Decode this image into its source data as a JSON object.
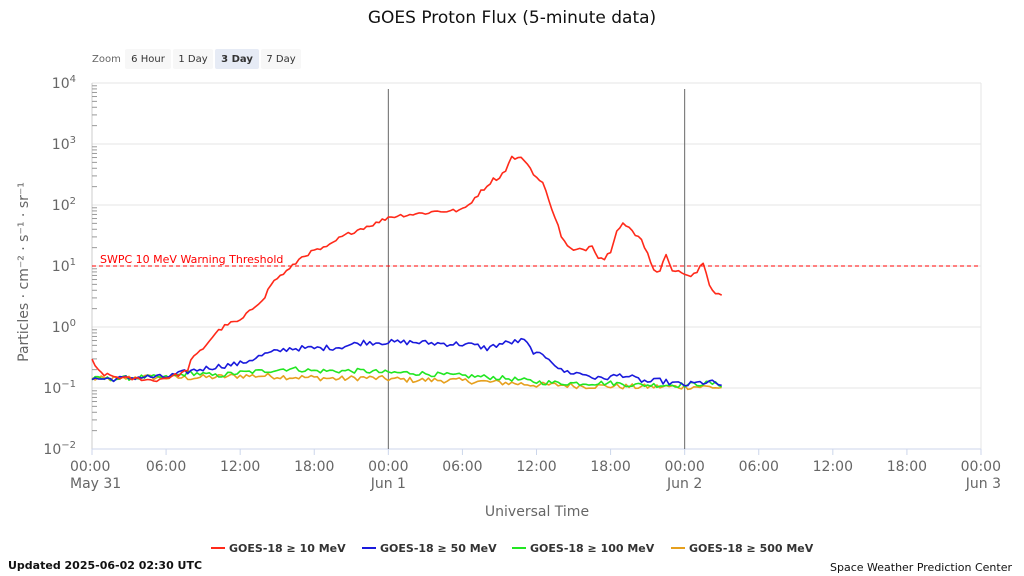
{
  "zoom": {
    "label": "Zoom",
    "options": [
      "6 Hour",
      "1 Day",
      "3 Day",
      "7 Day"
    ],
    "selected": "3 Day"
  },
  "footer": {
    "updated": "Updated 2025-06-02 02:30 UTC",
    "credit": "Space Weather Prediction Center"
  },
  "colors": {
    "p10": "#ff2a1a",
    "p50": "#1a1adc",
    "p100": "#22e622",
    "p500": "#e6a01e",
    "threshold": "#ff0000",
    "grid": "#e6e6e6"
  },
  "chart_data": {
    "type": "line",
    "title": "GOES Proton Flux (5-minute data)",
    "xlabel": "Universal Time",
    "ylabel": "Particles · cm⁻² · s⁻¹ · sr⁻¹",
    "yscale": "log",
    "ylim_exp": [
      -2,
      4
    ],
    "xlim_hours": [
      0,
      72
    ],
    "y_tick_exponents": [
      -2,
      -1,
      0,
      1,
      2,
      3,
      4
    ],
    "x_ticks": [
      {
        "h": 0,
        "time": "00:00",
        "date": "May 31"
      },
      {
        "h": 6,
        "time": "06:00",
        "date": ""
      },
      {
        "h": 12,
        "time": "12:00",
        "date": ""
      },
      {
        "h": 18,
        "time": "18:00",
        "date": ""
      },
      {
        "h": 24,
        "time": "00:00",
        "date": "Jun 1"
      },
      {
        "h": 30,
        "time": "06:00",
        "date": ""
      },
      {
        "h": 36,
        "time": "12:00",
        "date": ""
      },
      {
        "h": 42,
        "time": "18:00",
        "date": ""
      },
      {
        "h": 48,
        "time": "00:00",
        "date": "Jun 2"
      },
      {
        "h": 54,
        "time": "06:00",
        "date": ""
      },
      {
        "h": 60,
        "time": "12:00",
        "date": ""
      },
      {
        "h": 66,
        "time": "18:00",
        "date": ""
      },
      {
        "h": 72,
        "time": "00:00",
        "date": "Jun 3"
      }
    ],
    "day_dividers_hours": [
      24,
      48
    ],
    "threshold": {
      "label": "SWPC 10 MeV Warning Threshold",
      "value_exp": 1.0
    },
    "series": [
      {
        "name": "GOES-18 ≥ 10 MeV",
        "color_key": "p10",
        "noise": 0.03,
        "points": [
          [
            0,
            -0.55
          ],
          [
            0.3,
            -0.68
          ],
          [
            1,
            -0.78
          ],
          [
            2,
            -0.82
          ],
          [
            3,
            -0.85
          ],
          [
            4,
            -0.85
          ],
          [
            5,
            -0.88
          ],
          [
            6,
            -0.83
          ],
          [
            7,
            -0.78
          ],
          [
            7.7,
            -0.72
          ],
          [
            8,
            -0.55
          ],
          [
            8.5,
            -0.45
          ],
          [
            9,
            -0.35
          ],
          [
            10,
            -0.1
          ],
          [
            11,
            0.05
          ],
          [
            12,
            0.1
          ],
          [
            13,
            0.3
          ],
          [
            14,
            0.5
          ],
          [
            14.5,
            0.7
          ],
          [
            15,
            0.8
          ],
          [
            16,
            0.95
          ],
          [
            17,
            1.15
          ],
          [
            18,
            1.25
          ],
          [
            19,
            1.3
          ],
          [
            20,
            1.45
          ],
          [
            21,
            1.55
          ],
          [
            22,
            1.63
          ],
          [
            23,
            1.7
          ],
          [
            24,
            1.8
          ],
          [
            25,
            1.83
          ],
          [
            26,
            1.85
          ],
          [
            27,
            1.87
          ],
          [
            28,
            1.9
          ],
          [
            29,
            1.9
          ],
          [
            30,
            1.92
          ],
          [
            30.5,
            2.0
          ],
          [
            31,
            2.12
          ],
          [
            32,
            2.32
          ],
          [
            32.5,
            2.42
          ],
          [
            33,
            2.45
          ],
          [
            33.5,
            2.58
          ],
          [
            34,
            2.78
          ],
          [
            35,
            2.75
          ],
          [
            35.5,
            2.6
          ],
          [
            36,
            2.45
          ],
          [
            36.5,
            2.35
          ],
          [
            37,
            2.1
          ],
          [
            37.5,
            1.8
          ],
          [
            38,
            1.5
          ],
          [
            38.5,
            1.32
          ],
          [
            39,
            1.25
          ],
          [
            40,
            1.28
          ],
          [
            40.5,
            1.35
          ],
          [
            41,
            1.15
          ],
          [
            41.5,
            1.12
          ],
          [
            42,
            1.25
          ],
          [
            42.5,
            1.6
          ],
          [
            43,
            1.7
          ],
          [
            43.5,
            1.62
          ],
          [
            44,
            1.5
          ],
          [
            44.5,
            1.45
          ],
          [
            45,
            1.2
          ],
          [
            45.5,
            0.95
          ],
          [
            46,
            0.9
          ],
          [
            46.5,
            1.2
          ],
          [
            47,
            0.95
          ],
          [
            47.5,
            0.9
          ],
          [
            48,
            0.88
          ],
          [
            48.5,
            0.82
          ],
          [
            49,
            0.9
          ],
          [
            49.5,
            1.05
          ],
          [
            50,
            0.7
          ],
          [
            50.5,
            0.55
          ],
          [
            51,
            0.55
          ]
        ]
      },
      {
        "name": "GOES-18 ≥ 50 MeV",
        "color_key": "p50",
        "noise": 0.045,
        "points": [
          [
            0,
            -0.85
          ],
          [
            2,
            -0.85
          ],
          [
            4,
            -0.82
          ],
          [
            6,
            -0.82
          ],
          [
            8,
            -0.72
          ],
          [
            10,
            -0.65
          ],
          [
            12,
            -0.6
          ],
          [
            14,
            -0.45
          ],
          [
            16,
            -0.35
          ],
          [
            18,
            -0.35
          ],
          [
            20,
            -0.33
          ],
          [
            22,
            -0.25
          ],
          [
            24,
            -0.25
          ],
          [
            26,
            -0.25
          ],
          [
            28,
            -0.27
          ],
          [
            30,
            -0.28
          ],
          [
            31,
            -0.3
          ],
          [
            32,
            -0.35
          ],
          [
            33,
            -0.28
          ],
          [
            34,
            -0.25
          ],
          [
            35,
            -0.22
          ],
          [
            35.5,
            -0.35
          ],
          [
            36,
            -0.45
          ],
          [
            37,
            -0.5
          ],
          [
            38,
            -0.72
          ],
          [
            39,
            -0.75
          ],
          [
            40,
            -0.78
          ],
          [
            41,
            -0.85
          ],
          [
            42,
            -0.82
          ],
          [
            43,
            -0.78
          ],
          [
            44,
            -0.85
          ],
          [
            45,
            -0.9
          ],
          [
            46,
            -0.88
          ],
          [
            47,
            -0.92
          ],
          [
            48,
            -0.95
          ],
          [
            49,
            -0.92
          ],
          [
            50,
            -0.9
          ],
          [
            51,
            -0.95
          ]
        ]
      },
      {
        "name": "GOES-18 ≥ 100 MeV",
        "color_key": "p100",
        "noise": 0.04,
        "points": [
          [
            0,
            -0.85
          ],
          [
            2,
            -0.85
          ],
          [
            4,
            -0.82
          ],
          [
            6,
            -0.83
          ],
          [
            8,
            -0.75
          ],
          [
            10,
            -0.8
          ],
          [
            12,
            -0.75
          ],
          [
            14,
            -0.72
          ],
          [
            16,
            -0.68
          ],
          [
            18,
            -0.72
          ],
          [
            20,
            -0.72
          ],
          [
            22,
            -0.72
          ],
          [
            24,
            -0.75
          ],
          [
            26,
            -0.75
          ],
          [
            28,
            -0.78
          ],
          [
            30,
            -0.8
          ],
          [
            32,
            -0.82
          ],
          [
            34,
            -0.85
          ],
          [
            36,
            -0.9
          ],
          [
            38,
            -0.92
          ],
          [
            40,
            -0.92
          ],
          [
            42,
            -0.92
          ],
          [
            44,
            -0.95
          ],
          [
            46,
            -0.95
          ],
          [
            48,
            -0.95
          ],
          [
            50,
            -0.92
          ],
          [
            51,
            -0.95
          ]
        ]
      },
      {
        "name": "GOES-18 ≥ 500 MeV",
        "color_key": "p500",
        "noise": 0.045,
        "points": [
          [
            0,
            -0.85
          ],
          [
            2,
            -0.85
          ],
          [
            4,
            -0.82
          ],
          [
            6,
            -0.83
          ],
          [
            8,
            -0.83
          ],
          [
            10,
            -0.82
          ],
          [
            12,
            -0.8
          ],
          [
            14,
            -0.8
          ],
          [
            16,
            -0.82
          ],
          [
            18,
            -0.83
          ],
          [
            20,
            -0.85
          ],
          [
            22,
            -0.83
          ],
          [
            24,
            -0.85
          ],
          [
            26,
            -0.87
          ],
          [
            28,
            -0.87
          ],
          [
            30,
            -0.88
          ],
          [
            32,
            -0.9
          ],
          [
            34,
            -0.92
          ],
          [
            36,
            -0.95
          ],
          [
            38,
            -0.95
          ],
          [
            40,
            -0.97
          ],
          [
            42,
            -0.97
          ],
          [
            44,
            -0.98
          ],
          [
            46,
            -0.98
          ],
          [
            48,
            -0.98
          ],
          [
            50,
            -0.98
          ],
          [
            51,
            -1.0
          ]
        ]
      }
    ]
  }
}
